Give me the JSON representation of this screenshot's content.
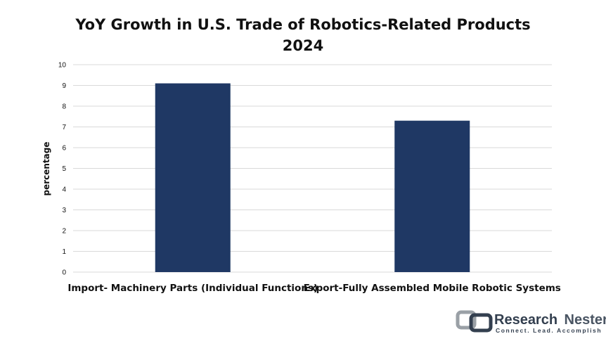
{
  "chart_data": {
    "type": "bar",
    "title": "YoY Growth in U.S. Trade of Robotics-Related Products",
    "subtitle": "2024",
    "xlabel": "",
    "ylabel": "percentage",
    "ylim": [
      0,
      10
    ],
    "yticks": [
      "0",
      "1",
      "2",
      "3",
      "4",
      "5",
      "6",
      "7",
      "8",
      "9",
      "10"
    ],
    "categories": [
      "Import- Machinery Parts (Individual Functions)",
      "Export-Fully Assembled Mobile Robotic Systems"
    ],
    "values": [
      9.1,
      7.3
    ],
    "bar_color": "#1f3864",
    "grid": true,
    "legend": "none"
  },
  "brand": {
    "name_part1": "Research",
    "name_part2": "Nester",
    "tagline": "Connect. Lead. Accomplish",
    "icon": "research-nester-logo-icon"
  }
}
